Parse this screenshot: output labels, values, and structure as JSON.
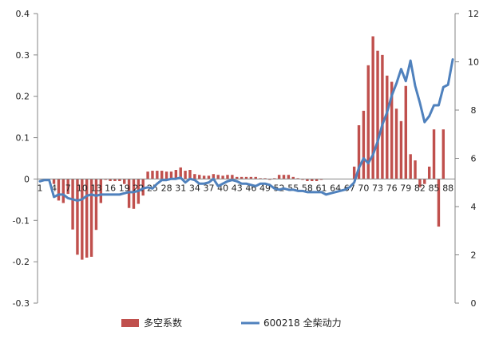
{
  "chart_data": {
    "type": "bar+line",
    "title": "",
    "ylim_left": [
      -0.3,
      0.4
    ],
    "yticks_left": [
      "0.4",
      "0.3",
      "0.2",
      "0.1",
      "0",
      "-0.1",
      "-0.2",
      "-0.3"
    ],
    "ylim_right": [
      0,
      12
    ],
    "yticks_right": [
      "12",
      "10",
      "8",
      "6",
      "4",
      "2",
      "0"
    ],
    "x_start": 1,
    "x_end": 89,
    "x_tick_labels": [
      "1",
      "4",
      "7",
      "10",
      "13",
      "16",
      "19",
      "22",
      "25",
      "28",
      "31",
      "34",
      "37",
      "40",
      "43",
      "46",
      "49",
      "52",
      "55",
      "58",
      "61",
      "64",
      "67",
      "70",
      "73",
      "76",
      "79",
      "82",
      "85",
      "88"
    ],
    "grid": false,
    "legend_position": "bottom",
    "series": [
      {
        "name": "多空系数",
        "type": "bar",
        "axis": "left",
        "color": "#c0504d",
        "values": [
          0,
          0,
          0,
          -0.012,
          -0.052,
          -0.058,
          -0.036,
          -0.122,
          -0.183,
          -0.195,
          -0.19,
          -0.188,
          -0.123,
          -0.058,
          -0.002,
          -0.005,
          -0.005,
          -0.005,
          -0.012,
          -0.07,
          -0.072,
          -0.06,
          -0.04,
          0.018,
          0.02,
          0.02,
          0.02,
          0.018,
          0.018,
          0.022,
          0.028,
          0.02,
          0.022,
          0.012,
          0.01,
          0.008,
          0.008,
          0.012,
          0.01,
          0.008,
          0.01,
          0.01,
          0.005,
          0.005,
          0.005,
          0.005,
          0.005,
          0.002,
          0.002,
          -0.002,
          0.002,
          0.01,
          0.01,
          0.01,
          0.005,
          0.002,
          -0.002,
          -0.005,
          -0.005,
          -0.005,
          -0.002,
          0,
          0,
          0,
          0,
          0,
          0,
          0.03,
          0.13,
          0.165,
          0.275,
          0.345,
          0.31,
          0.3,
          0.25,
          0.235,
          0.17,
          0.14,
          0.225,
          0.06,
          0.045,
          -0.02,
          -0.012,
          0.03,
          0.12,
          -0.115,
          0.12,
          0,
          0
        ]
      },
      {
        "name": "600218 全柴动力",
        "type": "line",
        "axis": "right",
        "color": "#4f81bd",
        "values": [
          5.05,
          5.1,
          5.1,
          4.4,
          4.5,
          4.5,
          4.35,
          4.3,
          4.25,
          4.3,
          4.45,
          4.5,
          4.45,
          4.5,
          4.5,
          4.5,
          4.5,
          4.5,
          4.55,
          4.6,
          4.6,
          4.65,
          4.75,
          4.8,
          4.75,
          4.95,
          5.1,
          5.1,
          5.15,
          5.15,
          5.2,
          5,
          5.15,
          5.1,
          4.95,
          4.95,
          5,
          5.15,
          4.85,
          4.95,
          5.05,
          5.1,
          5.05,
          4.95,
          4.95,
          4.9,
          4.85,
          4.95,
          4.95,
          4.9,
          4.75,
          4.7,
          4.75,
          4.7,
          4.7,
          4.65,
          4.65,
          4.6,
          4.6,
          4.6,
          4.6,
          4.5,
          4.55,
          4.6,
          4.65,
          4.7,
          4.8,
          5.0,
          5.6,
          6.0,
          5.8,
          6.15,
          6.7,
          7.4,
          7.9,
          8.6,
          9.1,
          9.7,
          9.2,
          10.05,
          9.0,
          8.3,
          7.5,
          7.75,
          8.2,
          8.2,
          8.95,
          9.05,
          10.1
        ]
      }
    ]
  }
}
